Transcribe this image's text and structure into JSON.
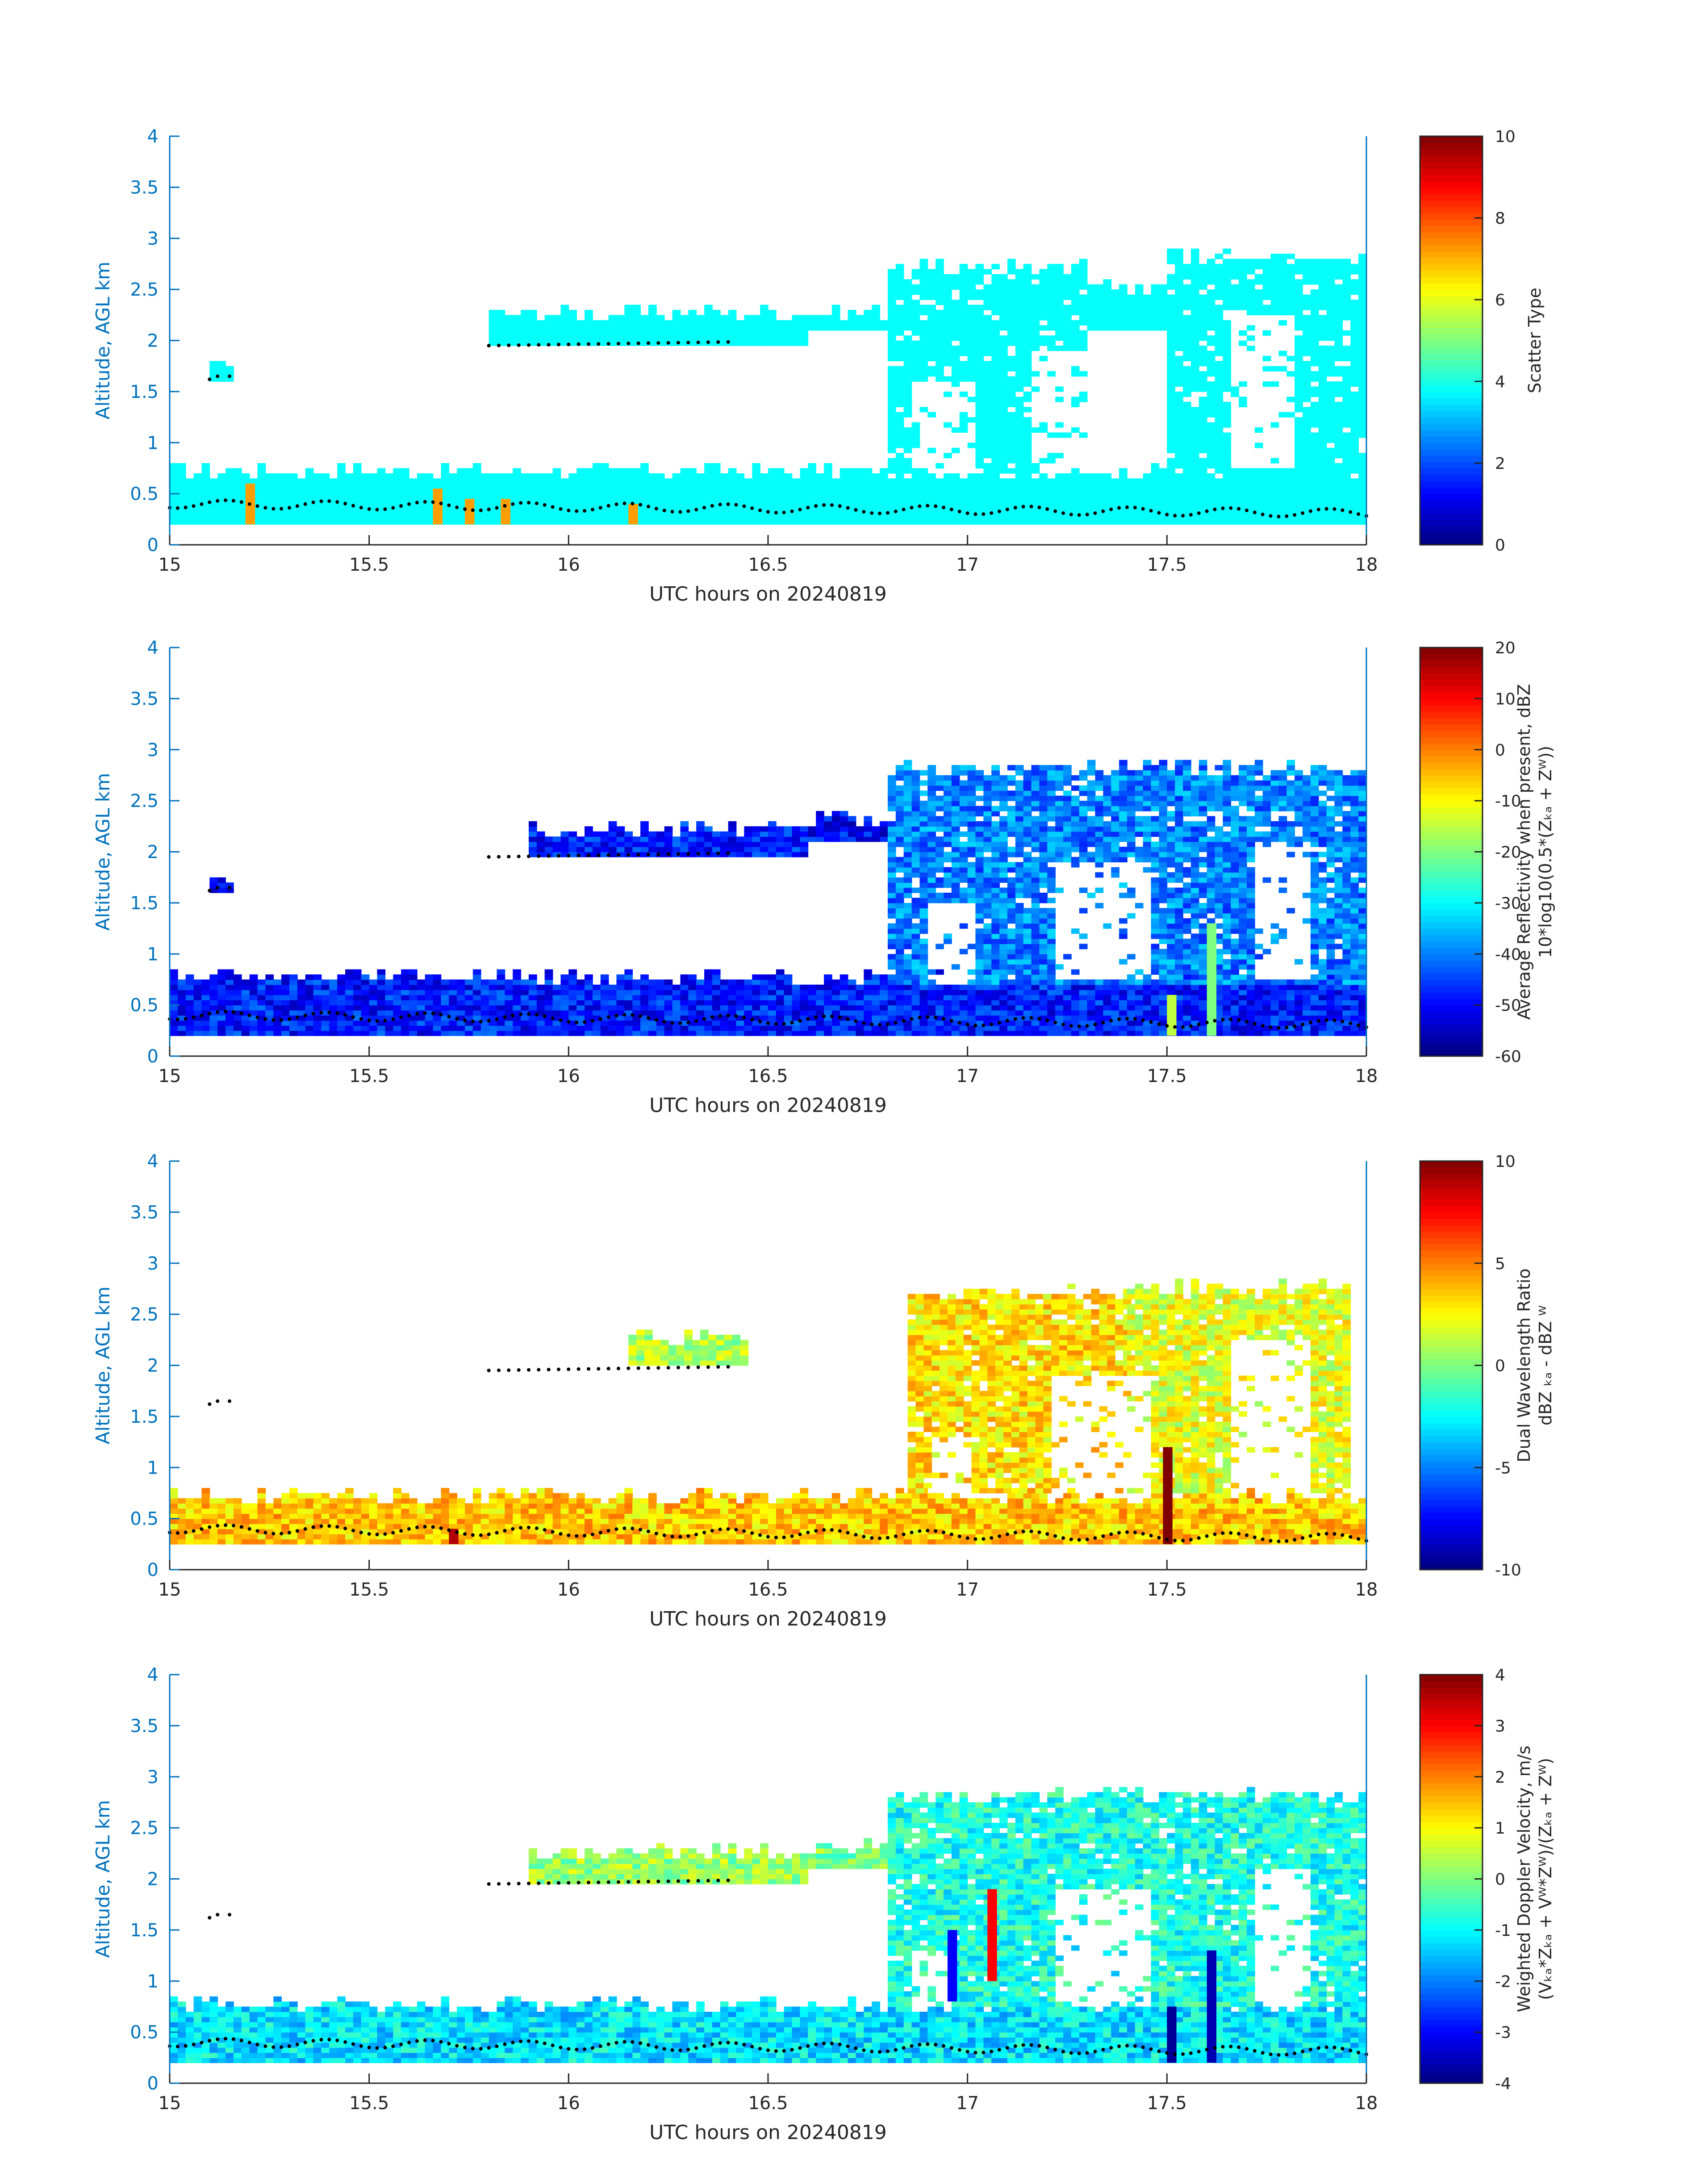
{
  "colors": {
    "axis_blue": "#0072BD",
    "text_dark": "#262626",
    "point_color": "#000000"
  },
  "chart_data": [
    {
      "type": "heatmap",
      "title": "",
      "xlabel": "UTC hours on 20240819",
      "ylabel": "Altitude, AGL km",
      "xlim": [
        15,
        18
      ],
      "ylim": [
        0,
        4
      ],
      "x_ticks": [
        "15",
        "15.5",
        "16",
        "16.5",
        "17",
        "17.5",
        "18"
      ],
      "y_ticks": [
        "0",
        "0.5",
        "1",
        "1.5",
        "2",
        "2.5",
        "3",
        "3.5",
        "4"
      ],
      "colorbar": {
        "label_lines": [
          "Scatter Type"
        ],
        "range": [
          0,
          10
        ],
        "ticks": [
          "0",
          "2",
          "4",
          "6",
          "8",
          "10"
        ],
        "colormap": "jet"
      },
      "regions": [
        {
          "x": [
            15.0,
            18.0
          ],
          "y": [
            0.2,
            0.7
          ],
          "value": 3.8
        },
        {
          "x": [
            15.1,
            15.15
          ],
          "y": [
            1.6,
            1.75
          ],
          "value": 3.8
        },
        {
          "x": [
            15.8,
            16.6
          ],
          "y": [
            1.95,
            2.25
          ],
          "value": 3.8
        },
        {
          "x": [
            16.6,
            16.8
          ],
          "y": [
            2.1,
            2.25
          ],
          "value": 3.8
        },
        {
          "x": [
            16.8,
            17.3
          ],
          "y": [
            0.7,
            2.7
          ],
          "value": 3.8
        },
        {
          "x": [
            17.3,
            17.5
          ],
          "y": [
            2.1,
            2.5
          ],
          "value": 3.8
        },
        {
          "x": [
            17.5,
            18.0
          ],
          "y": [
            0.7,
            2.8
          ],
          "value": 3.8
        }
      ],
      "highlights": [
        {
          "x": 15.19,
          "y": [
            0.2,
            0.6
          ],
          "value": 7.2
        },
        {
          "x": 15.66,
          "y": [
            0.2,
            0.55
          ],
          "value": 7.2
        },
        {
          "x": 15.74,
          "y": [
            0.2,
            0.45
          ],
          "value": 7.2
        },
        {
          "x": 15.83,
          "y": [
            0.2,
            0.45
          ],
          "value": 7.2
        },
        {
          "x": 16.15,
          "y": [
            0.2,
            0.4
          ],
          "value": 7.2
        }
      ],
      "holes": [
        {
          "x": [
            17.15,
            17.45
          ],
          "y": [
            0.7,
            1.9
          ]
        },
        {
          "x": [
            16.85,
            17.0
          ],
          "y": [
            0.7,
            1.6
          ]
        },
        {
          "x": [
            17.65,
            17.8
          ],
          "y": [
            0.75,
            2.2
          ]
        }
      ]
    },
    {
      "type": "heatmap",
      "title": "",
      "xlabel": "UTC hours on 20240819",
      "ylabel": "Altitude, AGL km",
      "xlim": [
        15,
        18
      ],
      "ylim": [
        0,
        4
      ],
      "x_ticks": [
        "15",
        "15.5",
        "16",
        "16.5",
        "17",
        "17.5",
        "18"
      ],
      "y_ticks": [
        "0",
        "0.5",
        "1",
        "1.5",
        "2",
        "2.5",
        "3",
        "3.5",
        "4"
      ],
      "colorbar": {
        "label_lines": [
          "Average Reflectivity when present, dBZ",
          "10*log10(0.5*(Zₖₐ + Zᵂ))"
        ],
        "range": [
          -60,
          20
        ],
        "ticks": [
          "-60",
          "-50",
          "-40",
          "-30",
          "-20",
          "-10",
          "0",
          "10",
          "20"
        ],
        "colormap": "jet"
      },
      "regions": [
        {
          "x": [
            15.0,
            18.0
          ],
          "y": [
            0.2,
            0.75
          ],
          "value": -48
        },
        {
          "x": [
            15.1,
            15.15
          ],
          "y": [
            1.6,
            1.7
          ],
          "value": -52
        },
        {
          "x": [
            15.9,
            16.6
          ],
          "y": [
            1.95,
            2.2
          ],
          "value": -48
        },
        {
          "x": [
            16.6,
            16.8
          ],
          "y": [
            2.1,
            2.3
          ],
          "value": -50
        },
        {
          "x": [
            16.8,
            18.0
          ],
          "y": [
            0.7,
            2.8
          ],
          "value": -40
        }
      ],
      "highlights": [
        {
          "x": 17.5,
          "y": [
            0.2,
            0.6
          ],
          "value": -15
        },
        {
          "x": 17.6,
          "y": [
            0.2,
            1.3
          ],
          "value": -20
        }
      ],
      "holes": [
        {
          "x": [
            17.2,
            17.45
          ],
          "y": [
            0.75,
            1.9
          ]
        },
        {
          "x": [
            16.9,
            17.0
          ],
          "y": [
            0.7,
            1.5
          ]
        },
        {
          "x": [
            17.7,
            17.85
          ],
          "y": [
            0.75,
            2.1
          ]
        }
      ]
    },
    {
      "type": "heatmap",
      "title": "",
      "xlabel": "UTC hours on 20240819",
      "ylabel": "Altitude, AGL km",
      "xlim": [
        15,
        18
      ],
      "ylim": [
        0,
        4
      ],
      "x_ticks": [
        "15",
        "15.5",
        "16",
        "16.5",
        "17",
        "17.5",
        "18"
      ],
      "y_ticks": [
        "0",
        "0.5",
        "1",
        "1.5",
        "2",
        "2.5",
        "3",
        "3.5",
        "4"
      ],
      "colorbar": {
        "label_lines": [
          "Dual Wavelength Ratio",
          "dBZ ₖₐ - dBZ ᵂ"
        ],
        "range": [
          -10,
          10
        ],
        "ticks": [
          "-10",
          "-5",
          "0",
          "5",
          "10"
        ],
        "colormap": "jet"
      },
      "regions": [
        {
          "x": [
            15.0,
            18.0
          ],
          "y": [
            0.25,
            0.7
          ],
          "value": 3.5
        },
        {
          "x": [
            16.15,
            16.45
          ],
          "y": [
            2.0,
            2.25
          ],
          "value": 1
        },
        {
          "x": [
            16.85,
            17.4
          ],
          "y": [
            0.75,
            2.7
          ],
          "value": 3
        },
        {
          "x": [
            17.4,
            17.95
          ],
          "y": [
            0.75,
            2.75
          ],
          "value": 2
        }
      ],
      "highlights": [
        {
          "x": 17.49,
          "y": [
            0.25,
            1.2
          ],
          "value": 10
        },
        {
          "x": 15.7,
          "y": [
            0.25,
            0.4
          ],
          "value": 9
        }
      ],
      "holes": [
        {
          "x": [
            17.2,
            17.45
          ],
          "y": [
            0.75,
            1.9
          ]
        },
        {
          "x": [
            16.9,
            17.0
          ],
          "y": [
            0.75,
            1.3
          ]
        },
        {
          "x": [
            17.65,
            17.85
          ],
          "y": [
            0.75,
            2.2
          ]
        }
      ]
    },
    {
      "type": "heatmap",
      "title": "",
      "xlabel": "UTC hours on 20240819",
      "ylabel": "Altitude, AGL km",
      "xlim": [
        15,
        18
      ],
      "ylim": [
        0,
        4
      ],
      "x_ticks": [
        "15",
        "15.5",
        "16",
        "16.5",
        "17",
        "17.5",
        "18"
      ],
      "y_ticks": [
        "0",
        "0.5",
        "1",
        "1.5",
        "2",
        "2.5",
        "3",
        "3.5",
        "4"
      ],
      "colorbar": {
        "label_lines": [
          "Weighted Doppler Velocity, m/s",
          "(Vₖₐ*Zₖₐ + Vᵂ*Zᵂ)/(Zₖₐ + Zᵂ)"
        ],
        "range": [
          -4,
          4
        ],
        "ticks": [
          "-4",
          "-3",
          "-2",
          "-1",
          "0",
          "1",
          "2",
          "3",
          "4"
        ],
        "colormap": "jet"
      },
      "regions": [
        {
          "x": [
            15.0,
            18.0
          ],
          "y": [
            0.2,
            0.75
          ],
          "value": -1.2
        },
        {
          "x": [
            15.9,
            16.6
          ],
          "y": [
            1.95,
            2.25
          ],
          "value": 0.2
        },
        {
          "x": [
            16.6,
            16.8
          ],
          "y": [
            2.1,
            2.3
          ],
          "value": 0
        },
        {
          "x": [
            16.8,
            18.0
          ],
          "y": [
            0.75,
            2.8
          ],
          "value": -0.8
        }
      ],
      "highlights": [
        {
          "x": 17.5,
          "y": [
            0.2,
            0.75
          ],
          "value": -3.8
        },
        {
          "x": 17.6,
          "y": [
            0.2,
            1.3
          ],
          "value": -3.6
        },
        {
          "x": 17.05,
          "y": [
            1.0,
            1.9
          ],
          "value": 3
        },
        {
          "x": 16.95,
          "y": [
            0.8,
            1.5
          ],
          "value": -3
        }
      ],
      "holes": [
        {
          "x": [
            17.2,
            17.45
          ],
          "y": [
            0.75,
            1.9
          ]
        },
        {
          "x": [
            16.85,
            16.95
          ],
          "y": [
            0.75,
            1.3
          ]
        },
        {
          "x": [
            17.7,
            17.85
          ],
          "y": [
            0.75,
            2.1
          ]
        }
      ]
    }
  ]
}
